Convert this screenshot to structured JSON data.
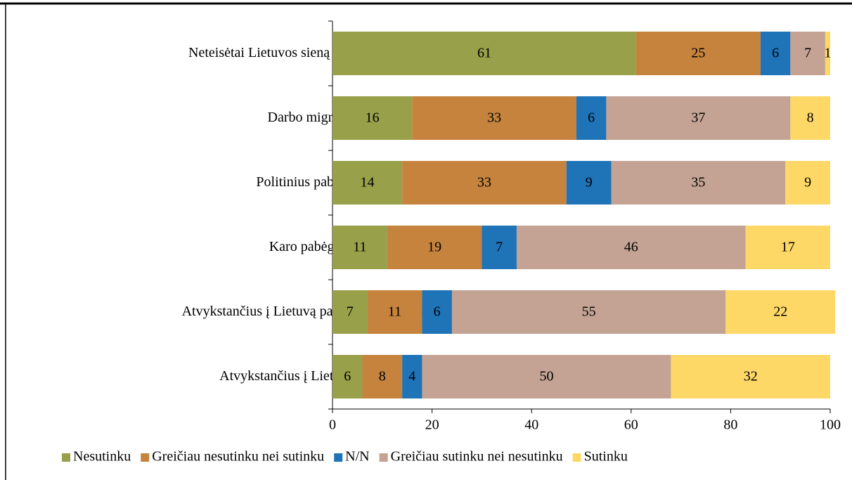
{
  "chart_data": {
    "type": "stacked_bar_horizontal",
    "categories": [
      "Neteisėtai Lietuvos sieną kirtusius migrantus",
      "Darbo migrantus",
      "Politinius pabėgėlius",
      "Karo pabėgėlius",
      "Atvykstančius į Lietuvą pas savo šeimos narius",
      "Atvykstančius į Lietuvą studijuoti"
    ],
    "series": [
      {
        "name": "Nesutinku",
        "color": "#98a04a",
        "values": [
          61,
          16,
          14,
          11,
          7,
          6
        ]
      },
      {
        "name": "Greičiau nesutinku nei sutinku",
        "color": "#c5833d",
        "values": [
          25,
          33,
          33,
          19,
          11,
          8
        ]
      },
      {
        "name": "N/N",
        "color": "#1f73b7",
        "values": [
          6,
          6,
          9,
          7,
          6,
          4
        ]
      },
      {
        "name": "Greičiau sutinku nei nesutinku",
        "color": "#c4a394",
        "values": [
          7,
          37,
          35,
          46,
          55,
          50
        ]
      },
      {
        "name": "Sutinku",
        "color": "#fed866",
        "values": [
          1,
          8,
          9,
          17,
          22,
          32
        ]
      }
    ],
    "xlim": [
      0,
      100
    ],
    "xticks": [
      0,
      20,
      40,
      60,
      80,
      100
    ],
    "legend": "bottom"
  }
}
